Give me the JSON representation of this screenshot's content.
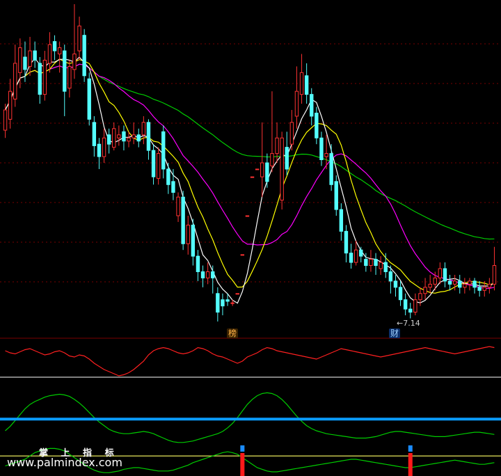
{
  "chart_data": {
    "type": "candlestick",
    "price_low_annotation": "7.14",
    "markers": [
      {
        "label": "榜",
        "candle_index": 48
      },
      {
        "label": "财",
        "candle_index": 82
      }
    ],
    "brand_text": "掌 上 指 标",
    "website": "www.palmindex.com",
    "colors": {
      "background": "#000000",
      "up_candle": "#ff3232",
      "down_candle": "#54ffff",
      "ma5": "#ffffff",
      "ma10": "#ffff00",
      "ma20": "#ff00ff",
      "ma60": "#00cc00",
      "sub1_line": "#ff2020",
      "sub2_line": "#00cc00",
      "sub2_level": "#0a9cff",
      "sub3_level": "#ffff66",
      "signal_blue": "#1a8cff",
      "signal_red": "#ff1a1a"
    },
    "candles": [
      [
        8.35,
        8.48,
        8.3,
        8.52
      ],
      [
        8.42,
        8.6,
        8.36,
        8.68
      ],
      [
        8.55,
        8.78,
        8.5,
        8.9
      ],
      [
        8.72,
        8.88,
        8.62,
        8.94
      ],
      [
        8.82,
        8.74,
        8.66,
        8.92
      ],
      [
        8.76,
        8.86,
        8.7,
        8.95
      ],
      [
        8.86,
        8.8,
        8.75,
        8.92
      ],
      [
        8.78,
        8.58,
        8.52,
        8.82
      ],
      [
        8.58,
        8.8,
        8.54,
        8.86
      ],
      [
        8.78,
        8.9,
        8.72,
        8.98
      ],
      [
        8.92,
        8.86,
        8.8,
        8.96
      ],
      [
        8.84,
        8.88,
        8.72,
        8.92
      ],
      [
        8.86,
        8.6,
        8.44,
        8.9
      ],
      [
        8.62,
        8.76,
        8.56,
        8.8
      ],
      [
        8.74,
        8.84,
        8.68,
        9.16
      ],
      [
        8.86,
        9.02,
        8.8,
        9.08
      ],
      [
        8.96,
        8.7,
        8.66,
        9.0
      ],
      [
        8.68,
        8.42,
        8.38,
        8.72
      ],
      [
        8.4,
        8.25,
        8.18,
        8.44
      ],
      [
        8.26,
        8.18,
        8.1,
        8.3
      ],
      [
        8.18,
        8.3,
        8.14,
        8.36
      ],
      [
        8.32,
        8.26,
        8.2,
        8.36
      ],
      [
        8.24,
        8.36,
        8.22,
        8.4
      ],
      [
        8.3,
        8.32,
        8.25,
        8.38
      ],
      [
        8.34,
        8.28,
        8.22,
        8.38
      ],
      [
        8.28,
        8.3,
        8.24,
        8.34
      ],
      [
        8.3,
        8.32,
        8.26,
        8.4
      ],
      [
        8.32,
        8.28,
        8.24,
        8.36
      ],
      [
        8.32,
        8.4,
        8.26,
        8.44
      ],
      [
        8.4,
        8.22,
        8.16,
        8.42
      ],
      [
        8.22,
        8.05,
        8.0,
        8.26
      ],
      [
        8.04,
        8.2,
        8.0,
        8.24
      ],
      [
        8.34,
        8.1,
        8.04,
        8.38
      ],
      [
        8.1,
        8.0,
        7.94,
        8.14
      ],
      [
        8.02,
        7.95,
        7.9,
        8.1
      ],
      [
        7.8,
        7.92,
        7.76,
        7.95
      ],
      [
        7.92,
        7.62,
        7.58,
        7.96
      ],
      [
        7.62,
        7.74,
        7.55,
        7.8
      ],
      [
        7.74,
        7.54,
        7.48,
        7.78
      ],
      [
        7.54,
        7.44,
        7.38,
        7.58
      ],
      [
        7.44,
        7.4,
        7.34,
        7.48
      ],
      [
        7.4,
        7.44,
        7.36,
        7.5
      ],
      [
        7.44,
        7.4,
        7.3,
        7.48
      ],
      [
        7.3,
        7.18,
        7.12,
        7.34
      ],
      [
        7.26,
        7.22,
        7.16,
        7.3
      ],
      [
        7.26,
        7.25,
        7.22,
        7.3
      ],
      [
        7.24,
        7.24,
        7.22,
        7.26
      ],
      [
        7.3,
        7.3,
        7.3,
        7.3
      ],
      [
        7.55,
        7.55,
        7.55,
        7.55
      ],
      [
        7.8,
        7.8,
        7.8,
        7.8
      ],
      [
        8.05,
        8.05,
        8.05,
        8.05
      ],
      [
        8.1,
        8.1,
        8.1,
        8.1
      ],
      [
        8.05,
        8.14,
        7.92,
        8.4
      ],
      [
        8.14,
        8.02,
        7.98,
        8.2
      ],
      [
        8.12,
        8.2,
        8.08,
        8.6
      ],
      [
        8.2,
        8.3,
        8.14,
        8.4
      ],
      [
        7.9,
        8.3,
        7.84,
        8.34
      ],
      [
        8.24,
        8.1,
        8.06,
        8.34
      ],
      [
        8.26,
        8.4,
        8.22,
        8.48
      ],
      [
        8.44,
        8.6,
        8.36,
        8.76
      ],
      [
        8.58,
        8.72,
        8.52,
        8.84
      ],
      [
        8.7,
        8.58,
        8.52,
        8.78
      ],
      [
        8.58,
        8.44,
        8.38,
        8.62
      ],
      [
        8.46,
        8.3,
        8.26,
        8.5
      ],
      [
        8.3,
        8.16,
        8.12,
        8.34
      ],
      [
        8.18,
        8.2,
        8.1,
        8.32
      ],
      [
        8.2,
        8.0,
        7.96,
        8.26
      ],
      [
        8.02,
        7.84,
        7.8,
        8.06
      ],
      [
        7.84,
        7.7,
        7.64,
        7.88
      ],
      [
        7.7,
        7.56,
        7.5,
        7.74
      ],
      [
        7.56,
        7.5,
        7.46,
        7.62
      ],
      [
        7.5,
        7.58,
        7.48,
        7.64
      ],
      [
        7.58,
        7.54,
        7.5,
        7.6
      ],
      [
        7.52,
        7.48,
        7.44,
        7.56
      ],
      [
        7.48,
        7.52,
        7.44,
        7.58
      ],
      [
        7.52,
        7.48,
        7.42,
        7.56
      ],
      [
        7.46,
        7.5,
        7.42,
        7.54
      ],
      [
        7.5,
        7.44,
        7.4,
        7.56
      ],
      [
        7.44,
        7.38,
        7.3,
        7.48
      ],
      [
        7.38,
        7.34,
        7.28,
        7.42
      ],
      [
        7.34,
        7.26,
        7.22,
        7.38
      ],
      [
        7.26,
        7.2,
        7.16,
        7.3
      ],
      [
        7.2,
        7.18,
        7.14,
        7.24
      ],
      [
        7.18,
        7.26,
        7.16,
        7.3
      ],
      [
        7.26,
        7.3,
        7.22,
        7.34
      ],
      [
        7.3,
        7.34,
        7.26,
        7.4
      ],
      [
        7.34,
        7.36,
        7.3,
        7.42
      ],
      [
        7.36,
        7.4,
        7.32,
        7.44
      ],
      [
        7.4,
        7.46,
        7.36,
        7.5
      ],
      [
        7.46,
        7.38,
        7.34,
        7.5
      ],
      [
        7.38,
        7.36,
        7.32,
        7.42
      ],
      [
        7.36,
        7.38,
        7.32,
        7.42
      ],
      [
        7.38,
        7.34,
        7.3,
        7.42
      ],
      [
        7.34,
        7.36,
        7.3,
        7.4
      ],
      [
        7.36,
        7.38,
        7.32,
        7.4
      ],
      [
        7.38,
        7.34,
        7.3,
        7.4
      ],
      [
        7.34,
        7.32,
        7.28,
        7.38
      ],
      [
        7.32,
        7.34,
        7.28,
        7.38
      ],
      [
        7.34,
        7.36,
        7.3,
        7.4
      ],
      [
        7.36,
        7.48,
        7.32,
        7.6
      ]
    ],
    "sub1_values": [
      60,
      58,
      57,
      59,
      61,
      62,
      60,
      58,
      56,
      57,
      59,
      60,
      58,
      55,
      54,
      56,
      55,
      52,
      48,
      45,
      42,
      40,
      38,
      36,
      37,
      39,
      42,
      46,
      50,
      56,
      60,
      62,
      63,
      62,
      60,
      58,
      57,
      58,
      60,
      63,
      62,
      60,
      57,
      55,
      54,
      52,
      50,
      48,
      50,
      54,
      56,
      58,
      61,
      63,
      62,
      60,
      59,
      58,
      57,
      56,
      55,
      54,
      53,
      52,
      54,
      56,
      58,
      60,
      62,
      61,
      60,
      59,
      58,
      57,
      56,
      55,
      54,
      55,
      56,
      57,
      58,
      59,
      60,
      61,
      62,
      63,
      62,
      61,
      60,
      59,
      58,
      57,
      58,
      59,
      60,
      61,
      62,
      63,
      64,
      63
    ],
    "sub2_values": [
      20,
      26,
      34,
      42,
      50,
      56,
      60,
      63,
      66,
      68,
      69,
      70,
      69,
      67,
      63,
      58,
      52,
      45,
      38,
      32,
      27,
      22,
      19,
      17,
      16,
      16,
      17,
      18,
      19,
      18,
      16,
      13,
      10,
      7,
      5,
      4,
      4,
      5,
      6,
      8,
      10,
      12,
      14,
      16,
      19,
      24,
      30,
      38,
      47,
      56,
      63,
      68,
      71,
      72,
      71,
      68,
      63,
      56,
      48,
      40,
      33,
      27,
      23,
      20,
      18,
      16,
      15,
      14,
      13,
      12,
      11,
      10,
      10,
      10,
      11,
      12,
      14,
      16,
      18,
      19,
      19,
      18,
      17,
      16,
      15,
      14,
      13,
      12,
      12,
      12,
      13,
      14,
      15,
      16,
      17,
      18,
      18,
      17,
      16,
      15
    ],
    "sub2_level": 36,
    "sub3_values": [
      12,
      14,
      16,
      18,
      20,
      24,
      28,
      30,
      32,
      33,
      33,
      32,
      30,
      26,
      22,
      18,
      14,
      10,
      7,
      5,
      4,
      4,
      5,
      6,
      8,
      9,
      10,
      10,
      9,
      8,
      7,
      6,
      6,
      6,
      7,
      9,
      11,
      13,
      16,
      18,
      20,
      22,
      24,
      26,
      28,
      29,
      28,
      26,
      22,
      18,
      14,
      10,
      8,
      6,
      5,
      5,
      6,
      7,
      8,
      9,
      10,
      11,
      12,
      13,
      14,
      15,
      16,
      17,
      18,
      19,
      20,
      20,
      19,
      18,
      17,
      16,
      15,
      14,
      13,
      12,
      11,
      10,
      10,
      11,
      12,
      13,
      14,
      15,
      16,
      17,
      18,
      19,
      18,
      17,
      16,
      15,
      14,
      14,
      15,
      16
    ],
    "sub3_level": 24,
    "signal_indices": [
      48,
      82
    ]
  }
}
